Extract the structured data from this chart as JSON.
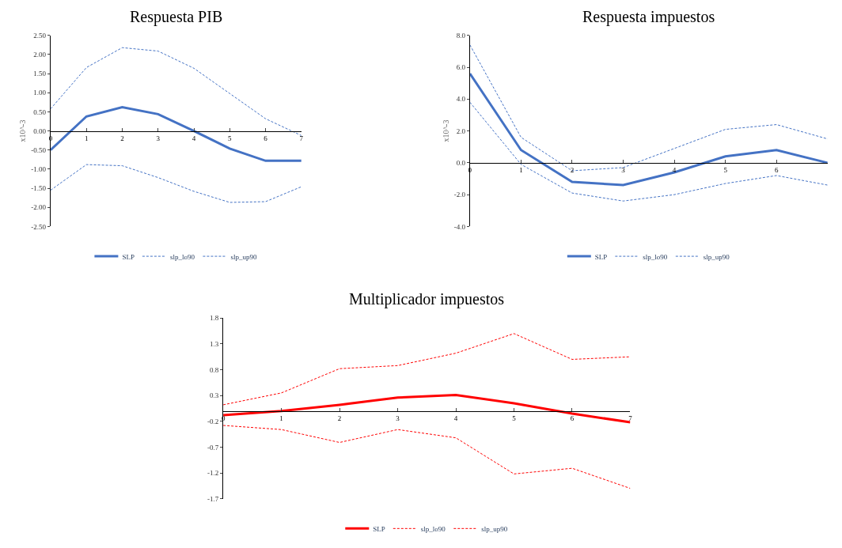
{
  "chart_data": [
    {
      "type": "line",
      "title": "Respuesta PIB",
      "ylabel": "x10^-3",
      "x": [
        0,
        1,
        2,
        3,
        4,
        5,
        6,
        7
      ],
      "xlim": [
        0,
        7
      ],
      "xticks": [
        0,
        1,
        2,
        3,
        4,
        5,
        6,
        7
      ],
      "ylim": [
        -2.5,
        2.5
      ],
      "yticks": [
        {
          "value": -2.5,
          "label": "-2.50"
        },
        {
          "value": -2,
          "label": "-2.00"
        },
        {
          "value": -1.5,
          "label": "-1.50"
        },
        {
          "value": -1,
          "label": "-1.00"
        },
        {
          "value": -0.5,
          "label": "-0.50"
        },
        {
          "value": 0,
          "label": "0.00"
        },
        {
          "value": 0.5,
          "label": "0.50"
        },
        {
          "value": 1,
          "label": "1.00"
        },
        {
          "value": 1.5,
          "label": "1.50"
        },
        {
          "value": 2,
          "label": "2.00"
        },
        {
          "value": 2.5,
          "label": "2.50"
        }
      ],
      "legend": "bottom",
      "series": [
        {
          "name": "SLP",
          "color": "#4472c4",
          "line_style": "solid",
          "values": [
            -0.5,
            0.38,
            0.62,
            0.44,
            0.0,
            -0.46,
            -0.78,
            -0.78
          ]
        },
        {
          "name": "slp_lo90",
          "color": "#4472c4",
          "line_style": "dashed",
          "values": [
            -1.55,
            -0.88,
            -0.91,
            -1.22,
            -1.58,
            -1.87,
            -1.85,
            -1.46
          ]
        },
        {
          "name": "slp_up90",
          "color": "#4472c4",
          "line_style": "dashed",
          "values": [
            0.58,
            1.66,
            2.18,
            2.09,
            1.64,
            0.98,
            0.32,
            -0.12
          ]
        }
      ]
    },
    {
      "type": "line",
      "title": "Respuesta impuestos",
      "ylabel": "x10^-3",
      "x": [
        0,
        1,
        2,
        3,
        4,
        5,
        6,
        7
      ],
      "xlim": [
        0,
        7
      ],
      "xticks": [
        0,
        1,
        2,
        3,
        4,
        5,
        6
      ],
      "ylim": [
        -4,
        8
      ],
      "yticks": [
        {
          "value": -4,
          "label": "-4.0"
        },
        {
          "value": -2,
          "label": "-2.0"
        },
        {
          "value": 0,
          "label": "0.0"
        },
        {
          "value": 2,
          "label": "2.0"
        },
        {
          "value": 4,
          "label": "4.0"
        },
        {
          "value": 6,
          "label": "6.0"
        },
        {
          "value": 8,
          "label": "8.0"
        }
      ],
      "legend": "bottom",
      "series": [
        {
          "name": "SLP",
          "color": "#4472c4",
          "line_style": "solid",
          "values": [
            5.6,
            0.8,
            -1.2,
            -1.4,
            -0.6,
            0.4,
            0.8,
            0.0
          ]
        },
        {
          "name": "slp_lo90",
          "color": "#4472c4",
          "line_style": "dashed",
          "values": [
            3.8,
            -0.1,
            -1.9,
            -2.4,
            -2.0,
            -1.3,
            -0.8,
            -1.4
          ]
        },
        {
          "name": "slp_up90",
          "color": "#4472c4",
          "line_style": "dashed",
          "values": [
            7.4,
            1.6,
            -0.5,
            -0.3,
            0.9,
            2.1,
            2.4,
            1.5
          ]
        }
      ]
    },
    {
      "type": "line",
      "title": "Multiplicador impuestos",
      "x": [
        0,
        1,
        2,
        3,
        4,
        5,
        6,
        7
      ],
      "xlim": [
        0,
        7
      ],
      "xticks": [
        0,
        1,
        2,
        3,
        4,
        5,
        6,
        7
      ],
      "ylim": [
        -1.7,
        1.8
      ],
      "yticks": [
        -1.7,
        -1.2,
        -0.7,
        -0.2,
        0.3,
        0.8,
        1.3,
        1.8
      ],
      "legend": "bottom",
      "series": [
        {
          "name": "SLP",
          "color": "#ff0000",
          "line_style": "solid",
          "values": [
            -0.08,
            0.0,
            0.12,
            0.26,
            0.31,
            0.15,
            -0.05,
            -0.22
          ]
        },
        {
          "name": "slp_lo90",
          "color": "#ff0000",
          "line_style": "dashed",
          "values": [
            -0.28,
            -0.36,
            -0.61,
            -0.36,
            -0.52,
            -1.22,
            -1.11,
            -1.5
          ]
        },
        {
          "name": "slp_up90",
          "color": "#ff0000",
          "line_style": "dashed",
          "values": [
            0.12,
            0.35,
            0.82,
            0.88,
            1.12,
            1.5,
            1.0,
            1.05
          ]
        }
      ]
    }
  ]
}
